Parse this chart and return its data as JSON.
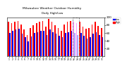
{
  "title": "Milwaukee Weather Outdoor Humidity",
  "subtitle": "Daily High/Low",
  "background_color": "#ffffff",
  "high_color": "#ff0000",
  "low_color": "#0000ff",
  "current_high_color": "#ff99ff",
  "current_low_color": "#aaaaff",
  "ylim": [
    0,
    100
  ],
  "yticks": [
    20,
    40,
    60,
    80,
    100
  ],
  "num_days": 31,
  "highs": [
    88,
    85,
    88,
    90,
    82,
    68,
    55,
    72,
    80,
    85,
    88,
    90,
    75,
    95,
    88,
    80,
    72,
    65,
    82,
    88,
    90,
    88,
    85,
    88,
    75,
    70,
    72,
    82,
    88,
    78,
    72
  ],
  "lows": [
    60,
    65,
    68,
    70,
    58,
    48,
    38,
    50,
    60,
    62,
    65,
    65,
    55,
    68,
    62,
    58,
    52,
    48,
    60,
    62,
    65,
    60,
    55,
    60,
    52,
    45,
    48,
    58,
    62,
    55,
    48
  ],
  "current_idx": [
    21,
    22
  ],
  "x_labels": [
    "1",
    "2",
    "3",
    "4",
    "5",
    "6",
    "7",
    "8",
    "9",
    "10",
    "11",
    "12",
    "13",
    "14",
    "15",
    "16",
    "17",
    "18",
    "19",
    "20",
    "21",
    "22",
    "23",
    "24",
    "25",
    "26",
    "27",
    "28",
    "29",
    "30",
    "31"
  ]
}
